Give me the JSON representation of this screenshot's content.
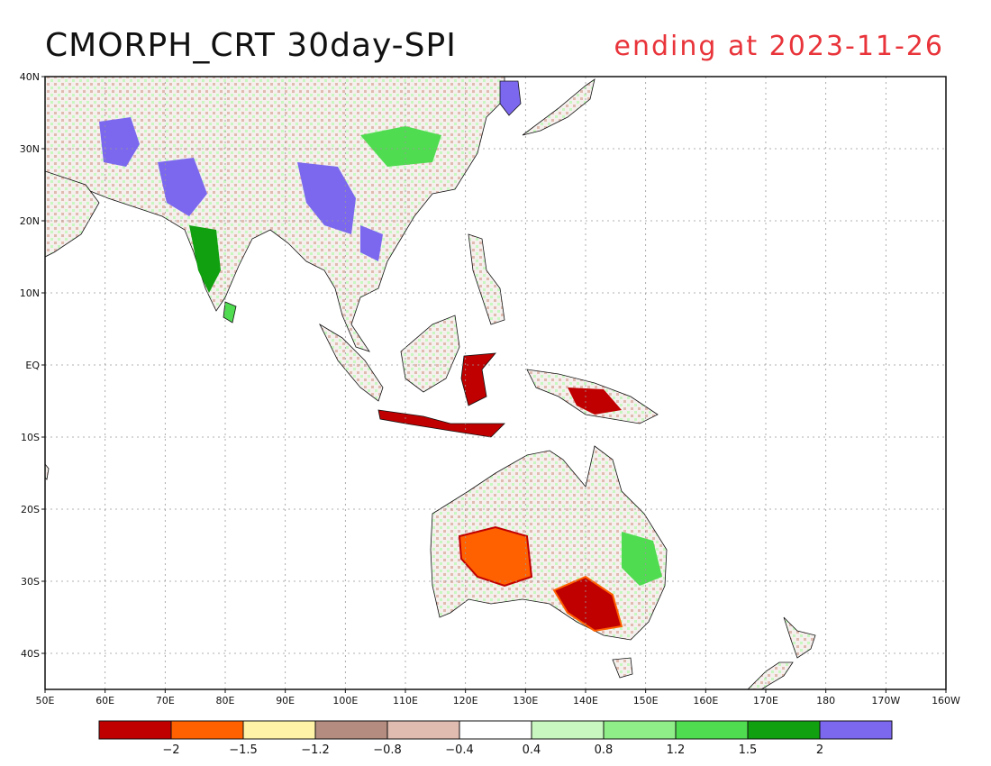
{
  "map": {
    "title": "CMORPH_CRT 30day-SPI",
    "subtitle": "ending at 2023-11-26",
    "lon_ticks": [
      "50E",
      "60E",
      "70E",
      "80E",
      "90E",
      "100E",
      "110E",
      "120E",
      "130E",
      "140E",
      "150E",
      "160E",
      "170E",
      "180",
      "170W",
      "160W"
    ],
    "lat_ticks": [
      "40N",
      "30N",
      "20N",
      "10N",
      "EQ",
      "10S",
      "20S",
      "30S",
      "40S"
    ],
    "colorbar": {
      "colors": [
        "#c00000",
        "#ff6000",
        "#fff3a8",
        "#b48c80",
        "#e0bcb0",
        "#ffffff",
        "#c8f8c0",
        "#90ee88",
        "#50dc50",
        "#10a010",
        "#7b68ee"
      ],
      "labels": [
        "-2",
        "-1.5",
        "-1.2",
        "-0.8",
        "-0.4",
        "0.4",
        "0.8",
        "1.2",
        "1.5",
        "2"
      ]
    }
  }
}
